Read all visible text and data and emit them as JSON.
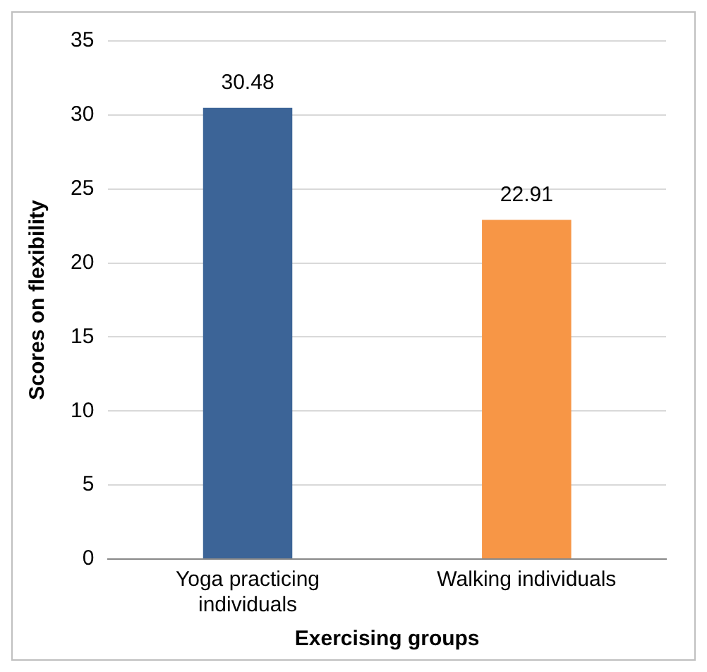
{
  "chart_data": {
    "type": "bar",
    "xlabel": "Exercising groups",
    "ylabel": "Scores on flexibility",
    "categories": [
      "Yoga practicing individuals",
      "Walking individuals"
    ],
    "values": [
      30.48,
      22.91
    ],
    "colors": [
      "#3c6497",
      "#f79646"
    ],
    "ylim": [
      0,
      35
    ],
    "yticks": [
      0,
      5,
      10,
      15,
      20,
      25,
      30,
      35
    ],
    "grid": "y",
    "data_labels": true,
    "legend": false
  }
}
